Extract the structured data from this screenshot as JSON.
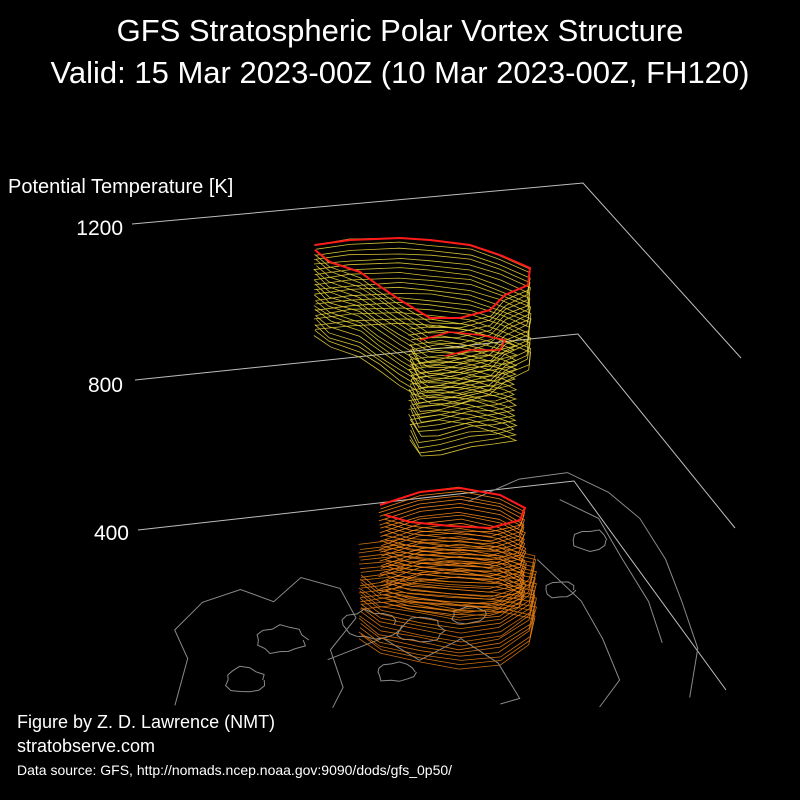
{
  "chart_data": {
    "type": "3d-isosurface",
    "title": "GFS Stratospheric Polar Vortex Structure",
    "subtitle": "Valid: 15 Mar 2023-00Z  (10 Mar 2023-00Z, FH120)",
    "zlabel": "Potential Temperature [K]",
    "z_ticks": [
      400,
      800,
      1200
    ],
    "zlim": [
      400,
      1200
    ],
    "series": [
      {
        "value_range": [
          400,
          560
        ],
        "color": "#ff8c1a",
        "highlight_color": "#ff1a1a"
      },
      {
        "value_range": [
          800,
          1200
        ],
        "color": "#e8d23a",
        "highlight_color": "#ff1a1a"
      }
    ],
    "basemap_color": "#8a8a8a",
    "grid_color": "#bdbdbd"
  },
  "credits": {
    "line1": "Figure by Z. D. Lawrence (NMT)",
    "line2": "stratobserve.com",
    "source": "Data source: GFS, http://nomads.ncep.noaa.gov:9090/dods/gfs_0p50/"
  }
}
